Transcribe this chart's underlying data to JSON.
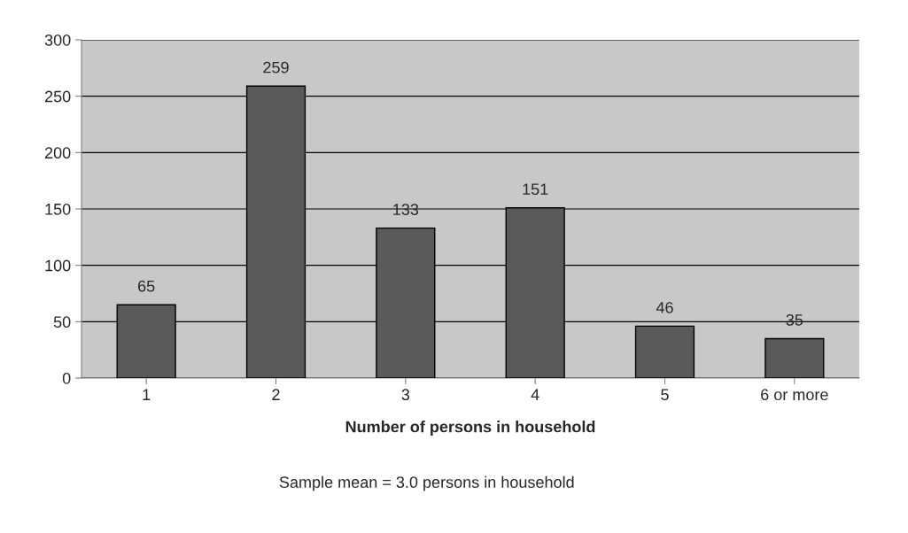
{
  "chart_data": {
    "type": "bar",
    "categories": [
      "1",
      "2",
      "3",
      "4",
      "5",
      "6 or more"
    ],
    "values": [
      65,
      259,
      133,
      151,
      46,
      35
    ],
    "color": "#5a5a5a",
    "ylim": [
      0,
      300
    ],
    "yticks": [
      0,
      50,
      100,
      150,
      200,
      250,
      300
    ],
    "grid": "y",
    "data_labels": true,
    "xlabel": "Number of persons in household",
    "annotations": [
      "Sample mean = 3.0 persons in household"
    ]
  }
}
